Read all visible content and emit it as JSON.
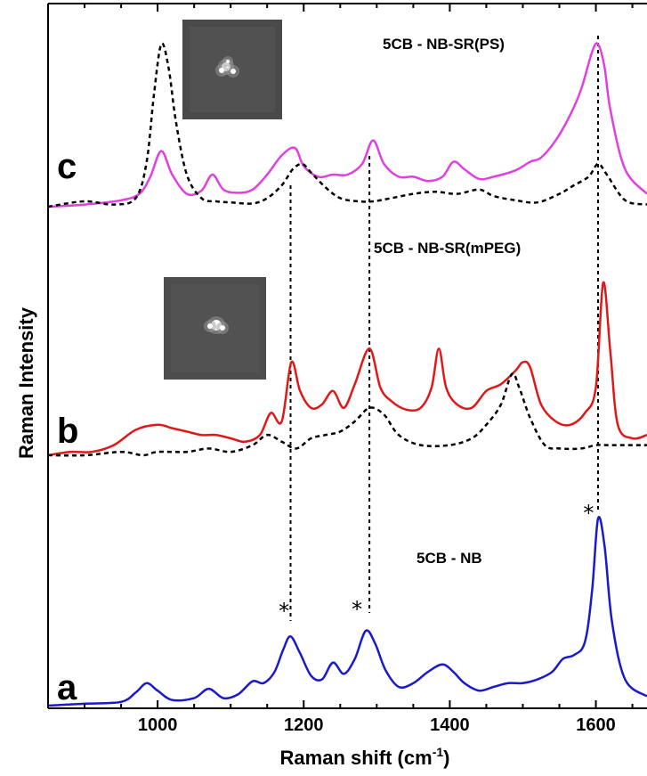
{
  "chart_data": {
    "type": "line",
    "xlabel": "Raman shift (cm",
    "xlabel_sup": "-1",
    "xlabel_end": ")",
    "ylabel": "Raman Intensity",
    "xlim": [
      850,
      1670
    ],
    "xticks": [
      1000,
      1200,
      1400,
      1600
    ],
    "grid": false,
    "colors": {
      "blue": "#1a1acc",
      "red": "#e01818",
      "magenta": "#e040e0",
      "dashed": "#000000"
    },
    "panels": [
      {
        "letter": "a",
        "label": "5CB - NB"
      },
      {
        "letter": "b",
        "label": "5CB - NB-SR(mPEG)"
      },
      {
        "letter": "c",
        "label": "5CB - NB-SR(PS)"
      }
    ],
    "asterisks": [
      {
        "x": 1173,
        "text": "*"
      },
      {
        "x": 1273,
        "text": "*"
      },
      {
        "x": 1590,
        "text": "*"
      }
    ],
    "reference_lines": [
      1182,
      1290,
      1603
    ],
    "series": [
      {
        "color": "#1a1acc",
        "style": "solid",
        "panel": "a",
        "x": [
          850,
          900,
          950,
          970,
          985,
          1000,
          1020,
          1050,
          1070,
          1090,
          1110,
          1130,
          1145,
          1160,
          1172,
          1182,
          1195,
          1210,
          1225,
          1240,
          1255,
          1270,
          1285,
          1298,
          1312,
          1330,
          1350,
          1370,
          1390,
          1405,
          1420,
          1440,
          1460,
          1480,
          1500,
          1520,
          1540,
          1555,
          1570,
          1585,
          1595,
          1603,
          1612,
          1622,
          1640,
          1670
        ],
        "y": [
          0.0,
          0.01,
          0.02,
          0.07,
          0.12,
          0.08,
          0.03,
          0.04,
          0.09,
          0.04,
          0.06,
          0.13,
          0.12,
          0.18,
          0.3,
          0.37,
          0.28,
          0.16,
          0.14,
          0.23,
          0.17,
          0.25,
          0.4,
          0.33,
          0.19,
          0.1,
          0.12,
          0.18,
          0.22,
          0.18,
          0.12,
          0.08,
          0.1,
          0.12,
          0.12,
          0.14,
          0.18,
          0.25,
          0.27,
          0.34,
          0.62,
          1.0,
          0.85,
          0.45,
          0.14,
          0.05
        ]
      },
      {
        "color": "#e01818",
        "style": "solid",
        "panel": "b",
        "x": [
          850,
          880,
          910,
          940,
          970,
          1000,
          1020,
          1040,
          1060,
          1080,
          1100,
          1120,
          1140,
          1155,
          1170,
          1183,
          1195,
          1210,
          1225,
          1240,
          1255,
          1270,
          1290,
          1305,
          1320,
          1340,
          1360,
          1375,
          1385,
          1395,
          1410,
          1430,
          1450,
          1470,
          1490,
          1500,
          1510,
          1525,
          1545,
          1565,
          1585,
          1600,
          1610,
          1620,
          1630,
          1650,
          1670
        ],
        "y": [
          0.0,
          0.02,
          0.02,
          0.06,
          0.15,
          0.18,
          0.16,
          0.14,
          0.12,
          0.12,
          0.1,
          0.08,
          0.12,
          0.25,
          0.2,
          0.55,
          0.38,
          0.28,
          0.3,
          0.38,
          0.28,
          0.42,
          0.63,
          0.4,
          0.32,
          0.27,
          0.28,
          0.4,
          0.63,
          0.4,
          0.3,
          0.28,
          0.38,
          0.42,
          0.5,
          0.55,
          0.52,
          0.3,
          0.2,
          0.18,
          0.25,
          0.4,
          1.02,
          0.6,
          0.18,
          0.1,
          0.12
        ]
      },
      {
        "color": "#000000",
        "style": "dashed",
        "panel": "b",
        "x": [
          850,
          900,
          950,
          980,
          1000,
          1040,
          1070,
          1100,
          1130,
          1150,
          1170,
          1190,
          1210,
          1230,
          1250,
          1270,
          1290,
          1310,
          1330,
          1360,
          1400,
          1430,
          1450,
          1470,
          1485,
          1495,
          1510,
          1530,
          1550,
          1580,
          1600,
          1620,
          1670
        ],
        "y": [
          0.0,
          0.0,
          0.02,
          0.0,
          0.02,
          0.02,
          0.04,
          0.02,
          0.06,
          0.12,
          0.08,
          0.04,
          0.1,
          0.12,
          0.14,
          0.2,
          0.28,
          0.24,
          0.12,
          0.06,
          0.06,
          0.1,
          0.18,
          0.3,
          0.48,
          0.4,
          0.22,
          0.06,
          0.04,
          0.04,
          0.06,
          0.06,
          0.06
        ]
      },
      {
        "color": "#e040e0",
        "style": "solid",
        "panel": "c",
        "x": [
          850,
          900,
          950,
          975,
          990,
          1005,
          1020,
          1040,
          1060,
          1075,
          1090,
          1110,
          1130,
          1150,
          1170,
          1188,
          1200,
          1220,
          1240,
          1260,
          1280,
          1295,
          1310,
          1330,
          1350,
          1370,
          1390,
          1405,
          1420,
          1440,
          1460,
          1490,
          1510,
          1525,
          1545,
          1565,
          1580,
          1595,
          1603,
          1612,
          1620,
          1640,
          1670
        ],
        "y": [
          0.0,
          0.02,
          0.06,
          0.12,
          0.28,
          0.52,
          0.3,
          0.12,
          0.15,
          0.3,
          0.16,
          0.13,
          0.16,
          0.3,
          0.48,
          0.55,
          0.38,
          0.28,
          0.3,
          0.3,
          0.4,
          0.62,
          0.4,
          0.28,
          0.28,
          0.24,
          0.28,
          0.42,
          0.35,
          0.26,
          0.28,
          0.34,
          0.42,
          0.46,
          0.62,
          0.86,
          1.1,
          1.45,
          1.52,
          1.3,
          0.9,
          0.35,
          0.12
        ]
      },
      {
        "color": "#000000",
        "style": "dashed",
        "panel": "c",
        "x": [
          850,
          900,
          940,
          970,
          985,
          995,
          1005,
          1015,
          1025,
          1040,
          1060,
          1080,
          1100,
          1130,
          1150,
          1170,
          1185,
          1198,
          1210,
          1230,
          1250,
          1275,
          1295,
          1320,
          1350,
          1380,
          1410,
          1440,
          1460,
          1490,
          1520,
          1550,
          1570,
          1590,
          1603,
          1615,
          1640,
          1670
        ],
        "y": [
          0.0,
          0.05,
          0.02,
          0.08,
          0.42,
          1.05,
          1.52,
          1.3,
          0.8,
          0.3,
          0.08,
          0.05,
          0.04,
          0.03,
          0.08,
          0.2,
          0.35,
          0.4,
          0.32,
          0.18,
          0.08,
          0.05,
          0.05,
          0.08,
          0.12,
          0.14,
          0.12,
          0.16,
          0.1,
          0.06,
          0.04,
          0.12,
          0.2,
          0.28,
          0.4,
          0.3,
          0.06,
          0.02
        ]
      }
    ],
    "insets": [
      {
        "panel": "c",
        "bg": "#4a4a4a"
      },
      {
        "panel": "b",
        "bg": "#4d4d4d"
      }
    ]
  }
}
